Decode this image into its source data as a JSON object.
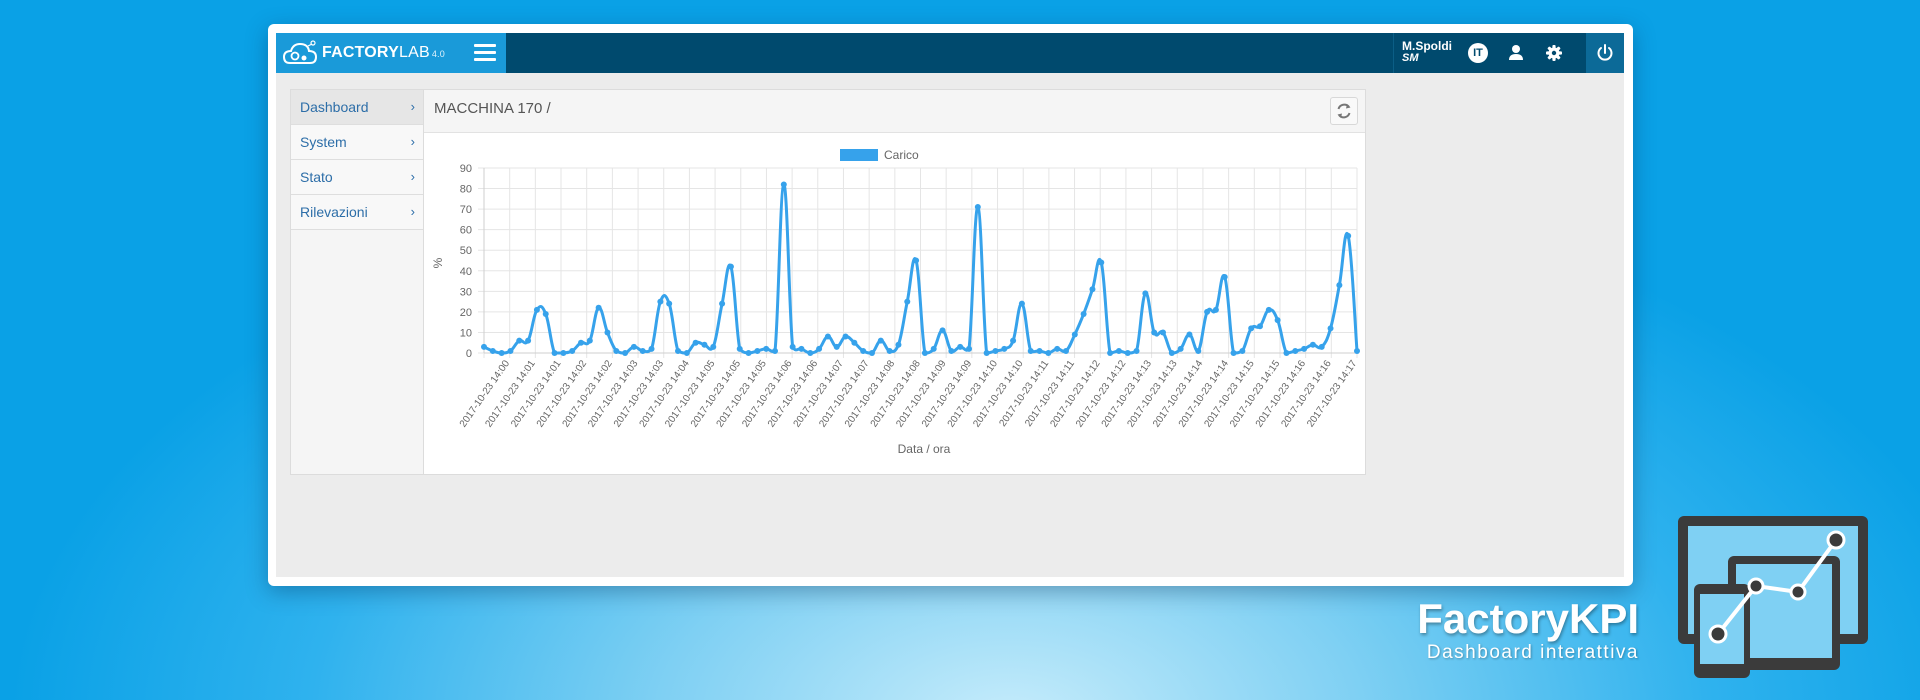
{
  "app": {
    "logo_factory": "FACTORY",
    "logo_lab": "LAB",
    "logo_version": "4.0"
  },
  "user": {
    "name": "M.Spoldi",
    "role": "SM"
  },
  "language": "IT",
  "icons": {
    "menu": "hamburger-icon",
    "language": "language-badge-icon",
    "user": "user-icon",
    "settings": "gear-icon",
    "power": "power-icon",
    "refresh": "refresh-icon",
    "chevron": "chevron-right-icon"
  },
  "sidebar": {
    "items": [
      {
        "label": "Dashboard",
        "active": true
      },
      {
        "label": "System",
        "active": false
      },
      {
        "label": "Stato",
        "active": false
      },
      {
        "label": "Rilevazioni",
        "active": false
      }
    ]
  },
  "panel": {
    "title": "MACCHINA 170 /"
  },
  "colors": {
    "topbar": "#004a6e",
    "accent": "#1a9ad9",
    "series": "#36a2eb",
    "link": "#2d6ea8"
  },
  "chart_data": {
    "type": "line",
    "xlabel": "Data / ora",
    "ylabel": "%",
    "ylim": [
      0,
      90
    ],
    "yticks": [
      0,
      10,
      20,
      30,
      40,
      50,
      60,
      70,
      80,
      90
    ],
    "grid": true,
    "legend_position": "top",
    "x_labels": [
      "2017-10-23 14:00",
      "2017-10-23 14:01",
      "2017-10-23 14:01",
      "2017-10-23 14:02",
      "2017-10-23 14:02",
      "2017-10-23 14:03",
      "2017-10-23 14:03",
      "2017-10-23 14:04",
      "2017-10-23 14:05",
      "2017-10-23 14:05",
      "2017-10-23 14:05",
      "2017-10-23 14:06",
      "2017-10-23 14:06",
      "2017-10-23 14:07",
      "2017-10-23 14:07",
      "2017-10-23 14:08",
      "2017-10-23 14:08",
      "2017-10-23 14:09",
      "2017-10-23 14:09",
      "2017-10-23 14:10",
      "2017-10-23 14:10",
      "2017-10-23 14:11",
      "2017-10-23 14:11",
      "2017-10-23 14:12",
      "2017-10-23 14:12",
      "2017-10-23 14:13",
      "2017-10-23 14:13",
      "2017-10-23 14:14",
      "2017-10-23 14:14",
      "2017-10-23 14:15",
      "2017-10-23 14:15",
      "2017-10-23 14:16",
      "2017-10-23 14:16",
      "2017-10-23 14:17"
    ],
    "series": [
      {
        "name": "Carico",
        "values": [
          3,
          1,
          0,
          1,
          6,
          6,
          21,
          19,
          0,
          0,
          1,
          5,
          6,
          22,
          10,
          1,
          0,
          3,
          1,
          2,
          25,
          24,
          1,
          0,
          5,
          4,
          3,
          24,
          42,
          2,
          0,
          1,
          2,
          1,
          82,
          3,
          2,
          0,
          2,
          8,
          3,
          8,
          5,
          1,
          0,
          6,
          1,
          4,
          25,
          45,
          0,
          2,
          11,
          1,
          3,
          2,
          71,
          0,
          1,
          2,
          6,
          24,
          1,
          1,
          0,
          2,
          1,
          9,
          19,
          31,
          44,
          0,
          1,
          0,
          1,
          29,
          10,
          10,
          0,
          2,
          9,
          1,
          20,
          21,
          37,
          0,
          1,
          12,
          13,
          21,
          16,
          0,
          1,
          2,
          4,
          3,
          12,
          33,
          57,
          1
        ]
      }
    ]
  },
  "brand": {
    "title": "FactoryKPI",
    "subtitle": "Dashboard interattiva"
  }
}
